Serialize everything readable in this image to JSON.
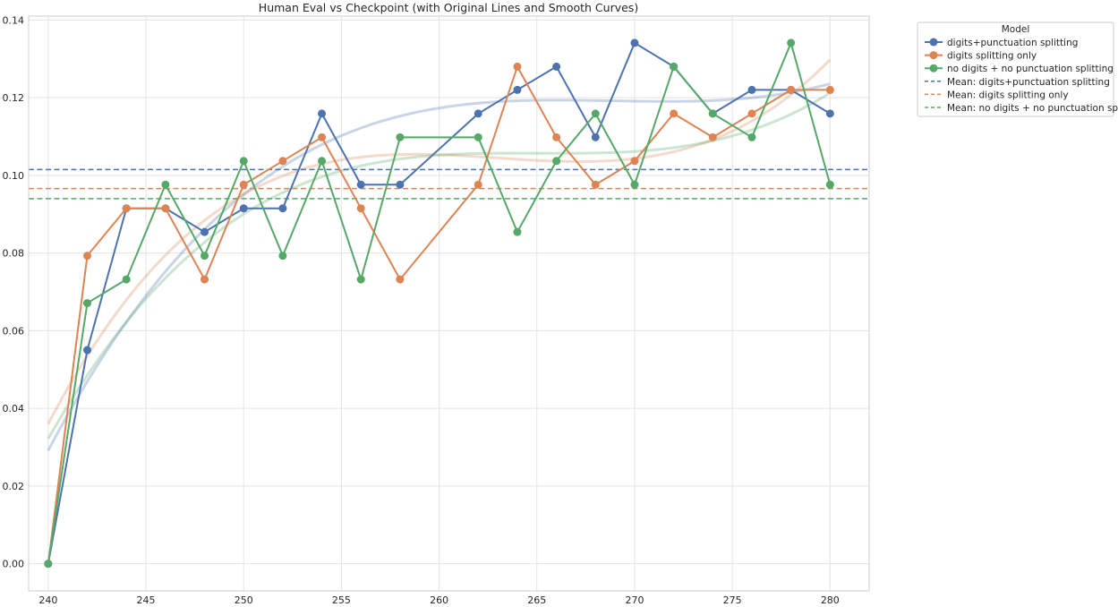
{
  "chart_data": {
    "type": "line",
    "title": "Human Eval vs Checkpoint (with Original Lines and Smooth Curves)",
    "xlabel": "",
    "ylabel": "",
    "xlim": [
      239,
      282
    ],
    "ylim": [
      -0.007,
      0.141
    ],
    "xticks": [
      240,
      245,
      250,
      255,
      260,
      265,
      270,
      275,
      280
    ],
    "yticks": [
      0.0,
      0.02,
      0.04,
      0.06,
      0.08,
      0.1,
      0.12,
      0.14
    ],
    "grid": true,
    "legend": {
      "title": "Model",
      "placement": "outside-top-right"
    },
    "series": [
      {
        "name": "digits+punctuation splitting",
        "color": "#4c72b0",
        "x": [
          240,
          242,
          244,
          246,
          248,
          250,
          252,
          254,
          256,
          258,
          262,
          264,
          266,
          268,
          270,
          272,
          274,
          276,
          278,
          280
        ],
        "values": [
          0.0,
          0.055,
          0.0915,
          0.0915,
          0.0854,
          0.0915,
          0.0915,
          0.1159,
          0.0976,
          0.0976,
          0.1159,
          0.122,
          0.128,
          0.1098,
          0.1341,
          0.128,
          0.1159,
          0.122,
          0.122,
          0.1159
        ],
        "mean": 0.1015,
        "mean_label": "Mean: digits+punctuation splitting"
      },
      {
        "name": "digits splitting only",
        "color": "#dd8452",
        "x": [
          240,
          242,
          244,
          246,
          248,
          250,
          252,
          254,
          256,
          258,
          262,
          264,
          266,
          268,
          270,
          272,
          274,
          276,
          278,
          280
        ],
        "values": [
          0.0,
          0.0793,
          0.0915,
          0.0915,
          0.0732,
          0.0976,
          0.1037,
          0.1098,
          0.0915,
          0.0732,
          0.0976,
          0.128,
          0.1098,
          0.0976,
          0.1037,
          0.1159,
          0.1098,
          0.1159,
          0.122,
          0.122
        ],
        "mean": 0.0966,
        "mean_label": "Mean: digits splitting only"
      },
      {
        "name": "no digits + no punctuation splitting",
        "color": "#55a868",
        "x": [
          240,
          242,
          244,
          246,
          248,
          250,
          252,
          254,
          256,
          258,
          262,
          264,
          266,
          268,
          270,
          272,
          274,
          276,
          278,
          280
        ],
        "values": [
          0.0,
          0.0671,
          0.0732,
          0.0976,
          0.0793,
          0.1037,
          0.0793,
          0.1037,
          0.0732,
          0.1098,
          0.1098,
          0.0854,
          0.1037,
          0.1159,
          0.0976,
          0.128,
          0.1159,
          0.1098,
          0.1341,
          0.0976
        ],
        "mean": 0.094,
        "mean_label": "Mean: no digits + no punctuation splitting"
      }
    ]
  }
}
